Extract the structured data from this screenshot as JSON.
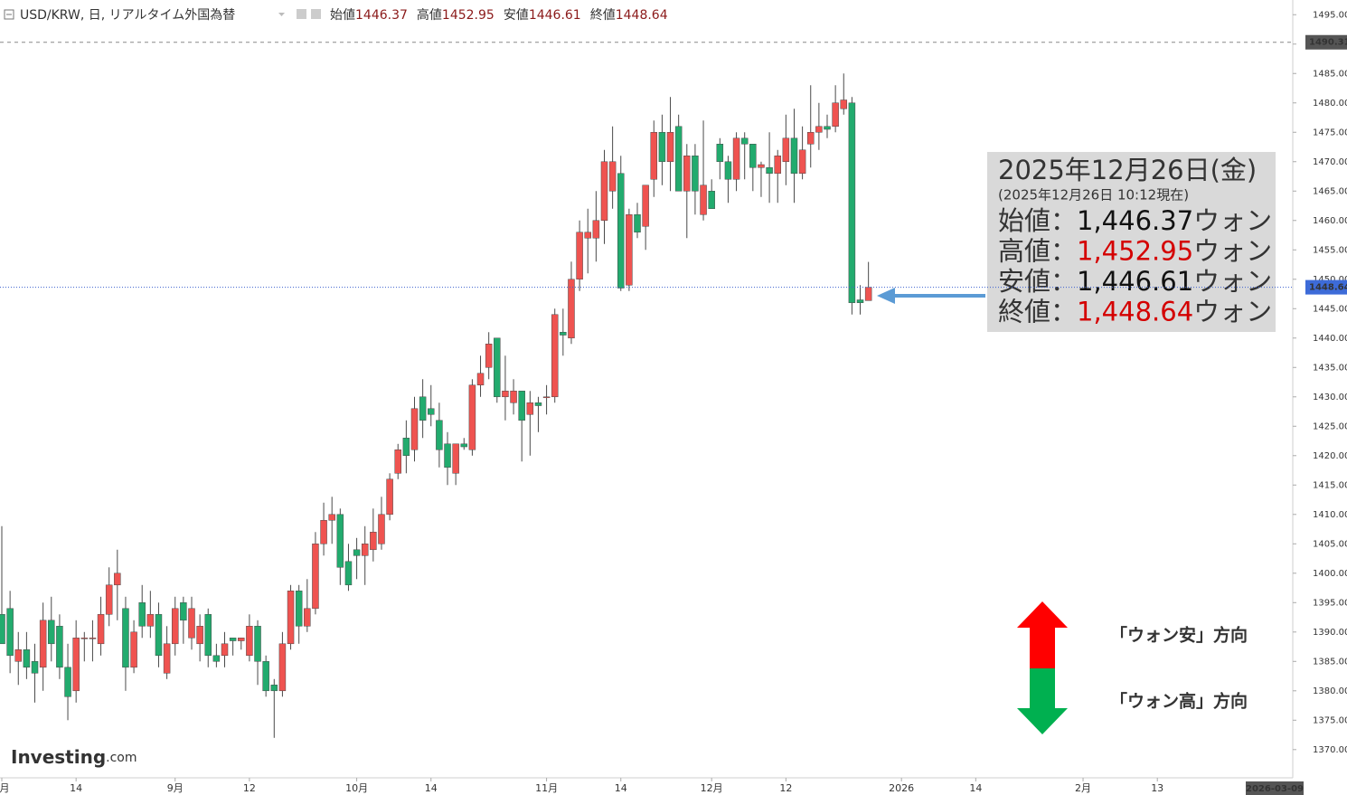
{
  "chart_data": {
    "type": "candlestick",
    "header": {
      "symbol": "USD/KRW, 日, リアルタイム外国為替",
      "labels": [
        "始値",
        "高値",
        "安値",
        "終値"
      ]
    },
    "categories": [
      "月",
      null,
      null,
      null,
      null,
      null,
      null,
      null,
      null,
      "14",
      null,
      null,
      null,
      null,
      null,
      null,
      null,
      null,
      null,
      null,
      null,
      "9月",
      null,
      null,
      null,
      null,
      null,
      null,
      null,
      null,
      "12",
      null,
      null,
      null,
      null,
      null,
      null,
      null,
      null,
      null,
      null,
      null,
      null,
      "10月",
      null,
      null,
      null,
      null,
      null,
      null,
      null,
      null,
      "14",
      null,
      null,
      null,
      null,
      null,
      null,
      null,
      null,
      null,
      null,
      null,
      null,
      null,
      "11月",
      null,
      null,
      null,
      null,
      null,
      null,
      null,
      null,
      "14",
      null,
      null,
      null,
      null,
      null,
      null,
      null,
      null,
      null,
      null,
      "12月",
      null,
      null,
      null,
      null,
      null,
      null,
      null,
      null,
      "12",
      null,
      null,
      null,
      null,
      null,
      null,
      null,
      null,
      null,
      null,
      null,
      null,
      null,
      "2026",
      null,
      null,
      null,
      null,
      null,
      null,
      null,
      null,
      "14",
      null,
      null,
      null,
      null,
      null,
      null,
      null,
      null,
      null,
      null,
      null,
      null,
      "2月",
      null,
      null,
      null,
      null,
      null,
      null,
      null,
      null,
      "13"
    ],
    "open": [
      1393,
      1394,
      1385,
      1387,
      1385,
      1384,
      1392,
      1391,
      1384,
      1380,
      1389,
      1389,
      1388,
      1393,
      1398,
      1394,
      1384,
      1395,
      1391,
      1393,
      1383,
      1388,
      1395,
      1389,
      1388,
      1393,
      1386,
      1386,
      1389,
      1388.5,
      1386,
      1391,
      1385,
      1381,
      1380,
      1388,
      1397,
      1391,
      1394,
      1405,
      1409,
      1410,
      1402,
      1404,
      1403,
      1404,
      1405,
      1410,
      1417,
      1423,
      1421,
      1430,
      1428,
      1426,
      1422,
      1417,
      1422,
      1421,
      1432,
      1435,
      1440,
      1430,
      1429,
      1431,
      1427,
      1429,
      1430,
      1430,
      1441,
      1440,
      1450,
      1457,
      1457,
      1460,
      1465,
      1468,
      1449,
      1461,
      1459,
      1467,
      1475,
      1470,
      1476,
      1465,
      1471,
      1461,
      1465,
      1473,
      1470,
      1467,
      1474,
      1473,
      1469,
      1469,
      1468,
      1470,
      1474,
      1468,
      1473,
      1475,
      1476,
      1476,
      1479,
      1480,
      1446.5,
      1446.37,
      null,
      null,
      null,
      null,
      null,
      null,
      null,
      null,
      null,
      null,
      null,
      null,
      null,
      null,
      null,
      null,
      null,
      null,
      null,
      null,
      null,
      null,
      null,
      null,
      null,
      null,
      null,
      null,
      null,
      null,
      null,
      null,
      null,
      null,
      null
    ],
    "high": [
      1408,
      1397,
      1390,
      1390,
      1388,
      1395,
      1396,
      1393,
      1388,
      1392,
      1390,
      1392,
      1396,
      1401,
      1404,
      1396,
      1392,
      1398,
      1397,
      1395,
      1391,
      1396,
      1396,
      1396,
      1393,
      1394,
      1388,
      1390,
      1389,
      1389,
      1393,
      1392,
      1386,
      1382,
      1390,
      1398,
      1398,
      1399,
      1407,
      1412,
      1413,
      1411,
      1405,
      1406,
      1408,
      1411,
      1413,
      1417,
      1422,
      1426,
      1430,
      1433,
      1432,
      1429,
      1424,
      1422,
      1423,
      1433,
      1437,
      1441,
      1440,
      1437,
      1433,
      1431,
      1431,
      1430,
      1432,
      1445,
      1445,
      1453,
      1460,
      1462,
      1465,
      1472,
      1476,
      1471,
      1462,
      1463,
      1466,
      1477,
      1478,
      1481,
      1478,
      1473,
      1473,
      1477,
      1467,
      1474,
      1471,
      1475,
      1475,
      1473,
      1470,
      1475,
      1472,
      1478,
      1479,
      1476,
      1483,
      1480,
      1478,
      1483,
      1485,
      1481,
      1449,
      1452.95,
      null,
      null,
      null,
      null,
      null,
      null,
      null,
      null,
      null,
      null,
      null,
      null,
      null,
      null,
      null,
      null,
      null,
      null,
      null,
      null,
      null,
      null,
      null,
      null,
      null,
      null,
      null,
      null,
      null,
      null,
      null,
      null,
      null,
      null,
      null
    ],
    "low": [
      1388,
      1383,
      1381,
      1382,
      1378,
      1380,
      1385,
      1382,
      1375,
      1378,
      1385,
      1385,
      1386,
      1391,
      1392,
      1380,
      1383,
      1389,
      1389,
      1384,
      1382,
      1386,
      1388,
      1387,
      1385,
      1384,
      1384,
      1384,
      1386,
      1387,
      1385,
      1381,
      1379,
      1372,
      1379,
      1387,
      1388,
      1390,
      1393,
      1403,
      1405,
      1398,
      1397,
      1399,
      1398,
      1402,
      1404,
      1409,
      1416,
      1417,
      1419,
      1423,
      1425,
      1418,
      1415,
      1415,
      1421,
      1420,
      1430,
      1433,
      1429,
      1426,
      1427,
      1419,
      1420,
      1424,
      1427,
      1429,
      1437,
      1439,
      1448,
      1451,
      1453,
      1456,
      1462,
      1448,
      1448,
      1457,
      1455,
      1464,
      1466,
      1465,
      1465,
      1457,
      1461,
      1460,
      1462,
      1467,
      1463,
      1465,
      1467,
      1465,
      1464,
      1463,
      1463,
      1466,
      1463,
      1467,
      1469,
      1472,
      1474,
      1475,
      1478,
      1444,
      1444,
      1446.61,
      null,
      null,
      null,
      null,
      null,
      null,
      null,
      null,
      null,
      null,
      null,
      null,
      null,
      null,
      null,
      null,
      null,
      null,
      null,
      null,
      null,
      null,
      null,
      null,
      null,
      null,
      null,
      null,
      null,
      null,
      null,
      null,
      null,
      null,
      null
    ],
    "close": [
      1388,
      1386,
      1387,
      1384,
      1383,
      1392,
      1388,
      1384,
      1379,
      1389,
      1389,
      1389,
      1393,
      1398,
      1400,
      1384,
      1390,
      1391,
      1393,
      1386,
      1388,
      1394,
      1392,
      1394,
      1391,
      1386,
      1385,
      1388,
      1388.5,
      1389,
      1391,
      1385,
      1380,
      1380,
      1388,
      1397,
      1391,
      1394,
      1405,
      1409,
      1410,
      1401,
      1398,
      1403,
      1405,
      1407,
      1410,
      1416,
      1421,
      1420,
      1428,
      1426,
      1427,
      1421,
      1418,
      1422,
      1421.5,
      1432,
      1434,
      1439,
      1430,
      1431,
      1431,
      1426,
      1429,
      1428.5,
      1430,
      1444,
      1440.5,
      1450,
      1458,
      1458,
      1460,
      1470,
      1470,
      1448.5,
      1461,
      1458,
      1466,
      1475,
      1470,
      1475,
      1465,
      1471,
      1465,
      1466,
      1462,
      1470,
      1467,
      1474,
      1473,
      1469,
      1469.5,
      1468,
      1471,
      1474,
      1468,
      1472,
      1475,
      1476,
      1475.5,
      1480,
      1480.5,
      1446,
      1446,
      1448.64,
      null,
      null,
      null,
      null,
      null,
      null,
      null,
      null,
      null,
      null,
      null,
      null,
      null,
      null,
      null,
      null,
      null,
      null,
      null,
      null,
      null,
      null,
      null,
      null,
      null,
      null,
      null,
      null,
      null,
      null,
      null,
      null,
      null,
      null,
      null
    ],
    "up_color": "#ef5350",
    "down_color": "#22ab6e",
    "ylim": [
      1365.2,
      1497.5
    ],
    "yticks": [
      {
        "value": 1370,
        "label": "1370.00"
      },
      {
        "value": 1375,
        "label": "1375.00"
      },
      {
        "value": 1380,
        "label": "1380.00"
      },
      {
        "value": 1385,
        "label": "1385.00"
      },
      {
        "value": 1390,
        "label": "1390.00"
      },
      {
        "value": 1395,
        "label": "1395.00"
      },
      {
        "value": 1400,
        "label": "1400.00"
      },
      {
        "value": 1405,
        "label": "1405.00"
      },
      {
        "value": 1410,
        "label": "1410.00"
      },
      {
        "value": 1415,
        "label": "1415.00"
      },
      {
        "value": 1420,
        "label": "1420.00"
      },
      {
        "value": 1425,
        "label": "1425.00"
      },
      {
        "value": 1430,
        "label": "1430.00"
      },
      {
        "value": 1435,
        "label": "1435.00"
      },
      {
        "value": 1440,
        "label": "1440.00"
      },
      {
        "value": 1445,
        "label": "1445.00"
      },
      {
        "value": 1450,
        "label": "1450.00"
      },
      {
        "value": 1455,
        "label": "1455.00"
      },
      {
        "value": 1460,
        "label": "1460.00"
      },
      {
        "value": 1465,
        "label": "1465.00"
      },
      {
        "value": 1470,
        "label": "1470.00"
      },
      {
        "value": 1475,
        "label": "1475.00"
      },
      {
        "value": 1480,
        "label": "1480.00"
      },
      {
        "value": 1485,
        "label": "1485.00"
      },
      {
        "value": 1490,
        "label": "1490.00"
      },
      {
        "value": 1495,
        "label": "1495.00"
      }
    ],
    "ref_line": 1490.31,
    "x_end_label": "2026-03-09",
    "logo": "Investing",
    "logo_suffix": ".com"
  },
  "annotation": {
    "title": "2025年12月26日(金)",
    "subtitle": "(2025年12月26日 10:12現在)",
    "rows": [
      {
        "label": "始値：",
        "value": "1,446.37",
        "unit": "ウォン",
        "color": "#111111"
      },
      {
        "label": "高値：",
        "value": "1,452.95",
        "unit": "ウォン",
        "color": "#d40000"
      },
      {
        "label": "安値：",
        "value": "1,446.61",
        "unit": "ウォン",
        "color": "#111111"
      },
      {
        "label": "終値：",
        "value": "1,448.64",
        "unit": "ウォン",
        "color": "#d40000"
      }
    ],
    "directions": [
      "「ウォン安」方向",
      "「ウォン高」方向"
    ]
  }
}
